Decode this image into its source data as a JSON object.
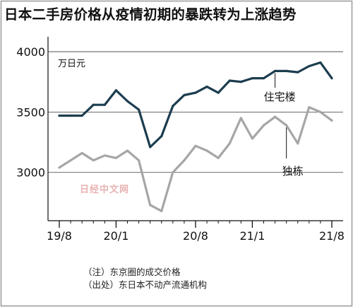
{
  "chart_data": {
    "type": "line",
    "title": "日本二手房价格从疫情初期的暴跌转为上涨趋势",
    "unit_label": "万日元",
    "ylim": [
      2600,
      4100
    ],
    "y_ticks": [
      {
        "value": 3000,
        "label": "3000"
      },
      {
        "value": 3500,
        "label": "3500"
      },
      {
        "value": 4000,
        "label": "4000"
      }
    ],
    "x_ticks": [
      {
        "index": 0,
        "label": "19/8"
      },
      {
        "index": 5,
        "label": "20/1"
      },
      {
        "index": 12,
        "label": "20/8"
      },
      {
        "index": 17,
        "label": "21/1"
      },
      {
        "index": 24,
        "label": "21/8"
      }
    ],
    "x": [
      "19/8",
      "19/9",
      "19/10",
      "19/11",
      "19/12",
      "20/1",
      "20/2",
      "20/3",
      "20/4",
      "20/5",
      "20/6",
      "20/7",
      "20/8",
      "20/9",
      "20/10",
      "20/11",
      "20/12",
      "21/1",
      "21/2",
      "21/3",
      "21/4",
      "21/5",
      "21/6",
      "21/7",
      "21/8"
    ],
    "series": [
      {
        "name": "住宅楼",
        "color": "#1c3d4f",
        "values": [
          3470,
          3470,
          3470,
          3560,
          3560,
          3680,
          3590,
          3520,
          3210,
          3300,
          3550,
          3640,
          3660,
          3710,
          3660,
          3760,
          3750,
          3780,
          3780,
          3840,
          3840,
          3830,
          3880,
          3910,
          3780
        ]
      },
      {
        "name": "独栋",
        "color": "#a6a6a6",
        "values": [
          3040,
          3100,
          3160,
          3100,
          3140,
          3120,
          3180,
          3100,
          2730,
          2680,
          3000,
          3100,
          3220,
          3180,
          3120,
          3240,
          3450,
          3280,
          3390,
          3460,
          3390,
          3240,
          3540,
          3500,
          3430
        ]
      }
    ],
    "legend": "inline labels"
  },
  "watermark": "日经中文网",
  "notes": [
    "（注）东京圈的成交价格",
    "（出处）东日本不动产流通机构"
  ]
}
